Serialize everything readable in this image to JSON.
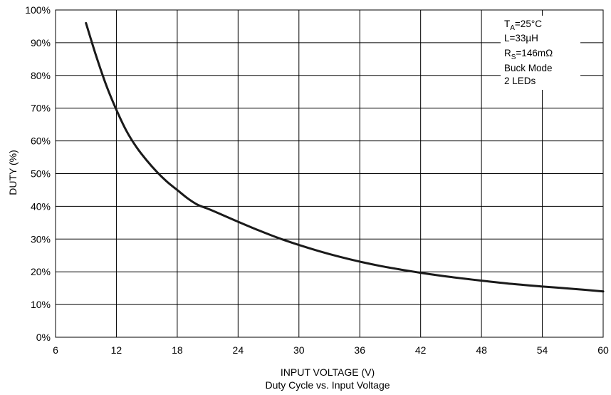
{
  "chart_data": {
    "type": "line",
    "title": "Duty Cycle vs. Input Voltage",
    "xlabel": "INPUT VOLTAGE (V)",
    "ylabel": "DUTY (%)",
    "xlim": [
      6,
      60
    ],
    "ylim": [
      0,
      100
    ],
    "x_ticks": [
      "6",
      "12",
      "18",
      "24",
      "30",
      "36",
      "42",
      "48",
      "54",
      "60"
    ],
    "y_ticks": [
      "0%",
      "10%",
      "20%",
      "30%",
      "40%",
      "50%",
      "60%",
      "70%",
      "80%",
      "90%",
      "100%"
    ],
    "grid": true,
    "series": [
      {
        "x": [
          9,
          10,
          11,
          12,
          13,
          14,
          15,
          16,
          17,
          18,
          19,
          20,
          21,
          22,
          24,
          26,
          28,
          30,
          32,
          34,
          36,
          38,
          40,
          42,
          45,
          48,
          51,
          54,
          57,
          60
        ],
        "y": [
          96,
          86,
          77,
          69.5,
          63,
          58,
          54,
          50.5,
          47.5,
          45,
          42.5,
          40.5,
          39.3,
          38,
          35.3,
          32.7,
          30.3,
          28.2,
          26.3,
          24.6,
          23.1,
          21.8,
          20.7,
          19.7,
          18.4,
          17.3,
          16.3,
          15.5,
          14.8,
          14
        ]
      }
    ],
    "annotation": {
      "ta_main": "T",
      "ta_sub": "A",
      "ta_rest": "=25°C",
      "inductance": "L=33µH",
      "rs_main": "R",
      "rs_sub": "S",
      "rs_rest": "=146mΩ",
      "mode": "Buck Mode",
      "leds": "2 LEDs"
    },
    "colors": {
      "line": "#1a1a1a",
      "grid": "#000000",
      "background": "#ffffff"
    }
  }
}
